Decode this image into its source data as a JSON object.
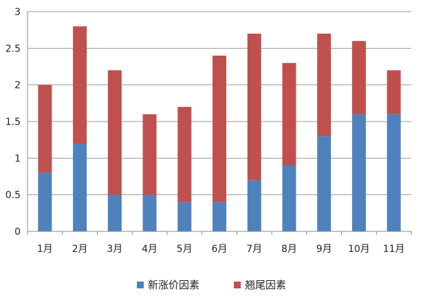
{
  "chart_data": {
    "type": "bar",
    "stacked": true,
    "title": "",
    "xlabel": "",
    "ylabel": "",
    "ylim": [
      0,
      3
    ],
    "yticks": [
      "0",
      "0.5",
      "1",
      "1.5",
      "2",
      "2.5",
      "3"
    ],
    "ytick_values": [
      0,
      0.5,
      1,
      1.5,
      2,
      2.5,
      3
    ],
    "grid": true,
    "legend_position": "bottom",
    "categories": [
      "1月",
      "2月",
      "3月",
      "4月",
      "5月",
      "6月",
      "7月",
      "8月",
      "9月",
      "10月",
      "11月"
    ],
    "series": [
      {
        "name": "新涨价因素",
        "color": "#4F81BD",
        "values": [
          0.8,
          1.2,
          0.5,
          0.5,
          0.4,
          0.4,
          0.7,
          0.9,
          1.3,
          1.6,
          1.6
        ]
      },
      {
        "name": "翘尾因素",
        "color": "#C0504D",
        "values": [
          1.2,
          1.6,
          1.7,
          1.1,
          1.3,
          2.0,
          2.0,
          1.4,
          1.4,
          1.0,
          0.6
        ]
      }
    ]
  }
}
